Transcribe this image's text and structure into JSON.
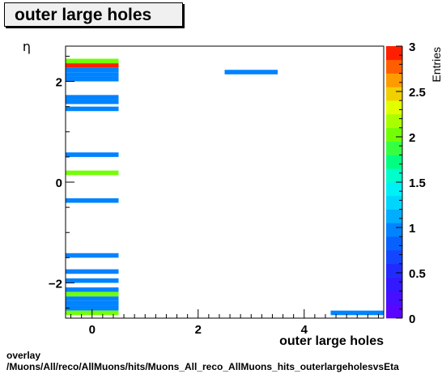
{
  "title": "outer large holes",
  "footer": {
    "line1": "overlay",
    "line2": "/Muons/All/reco/AllMuons/hits/Muons_All_reco_AllMuons_hits_outerlargeholesvsEta"
  },
  "chart_data": {
    "type": "heatmap",
    "title": "outer large holes",
    "xlabel": "outer large holes",
    "ylabel": "η",
    "zlabel": "Entries",
    "xlim": [
      -0.5,
      5.5
    ],
    "ylim": [
      -2.7,
      2.7
    ],
    "zlim": [
      0,
      3
    ],
    "x_ticks": [
      "0",
      "2",
      "4"
    ],
    "y_ticks": [
      "−2",
      "0",
      "2"
    ],
    "z_ticks": [
      "0",
      "0.5",
      "1",
      "1.5",
      "2",
      "2.5",
      "3"
    ],
    "cells": [
      {
        "x": [
          -0.5,
          0.5
        ],
        "y": [
          2.36,
          2.45
        ],
        "z": 2
      },
      {
        "x": [
          -0.5,
          0.5
        ],
        "y": [
          2.27,
          2.36
        ],
        "z": 3
      },
      {
        "x": [
          -0.5,
          0.5
        ],
        "y": [
          2.18,
          2.27
        ],
        "z": 1
      },
      {
        "x": [
          -0.5,
          0.5
        ],
        "y": [
          2.09,
          2.18
        ],
        "z": 1
      },
      {
        "x": [
          -0.5,
          0.5
        ],
        "y": [
          2.0,
          2.09
        ],
        "z": 1
      },
      {
        "x": [
          -0.5,
          0.5
        ],
        "y": [
          1.64,
          1.73
        ],
        "z": 1
      },
      {
        "x": [
          -0.5,
          0.5
        ],
        "y": [
          1.55,
          1.64
        ],
        "z": 1
      },
      {
        "x": [
          -0.5,
          0.5
        ],
        "y": [
          1.41,
          1.5
        ],
        "z": 1
      },
      {
        "x": [
          -0.5,
          0.5
        ],
        "y": [
          0.5,
          0.59
        ],
        "z": 1
      },
      {
        "x": [
          -0.5,
          0.5
        ],
        "y": [
          0.14,
          0.23
        ],
        "z": 2
      },
      {
        "x": [
          -0.5,
          0.5
        ],
        "y": [
          -0.41,
          -0.32
        ],
        "z": 1
      },
      {
        "x": [
          -0.5,
          0.5
        ],
        "y": [
          -1.5,
          -1.41
        ],
        "z": 1
      },
      {
        "x": [
          -0.5,
          0.5
        ],
        "y": [
          -1.82,
          -1.73
        ],
        "z": 1
      },
      {
        "x": [
          -0.5,
          0.5
        ],
        "y": [
          -2.0,
          -1.91
        ],
        "z": 1
      },
      {
        "x": [
          -0.5,
          0.5
        ],
        "y": [
          -2.18,
          -2.09
        ],
        "z": 1
      },
      {
        "x": [
          -0.5,
          0.5
        ],
        "y": [
          -2.27,
          -2.18
        ],
        "z": 2
      },
      {
        "x": [
          -0.5,
          0.5
        ],
        "y": [
          -2.36,
          -2.27
        ],
        "z": 1
      },
      {
        "x": [
          -0.5,
          0.5
        ],
        "y": [
          -2.45,
          -2.36
        ],
        "z": 1
      },
      {
        "x": [
          -0.5,
          0.5
        ],
        "y": [
          -2.55,
          -2.45
        ],
        "z": 1
      },
      {
        "x": [
          -0.5,
          0.5
        ],
        "y": [
          -2.64,
          -2.55
        ],
        "z": 2
      },
      {
        "x": [
          2.5,
          3.5
        ],
        "y": [
          2.14,
          2.23
        ],
        "z": 1
      },
      {
        "x": [
          4.5,
          5.5
        ],
        "y": [
          -2.64,
          -2.55
        ],
        "z": 1
      }
    ]
  }
}
